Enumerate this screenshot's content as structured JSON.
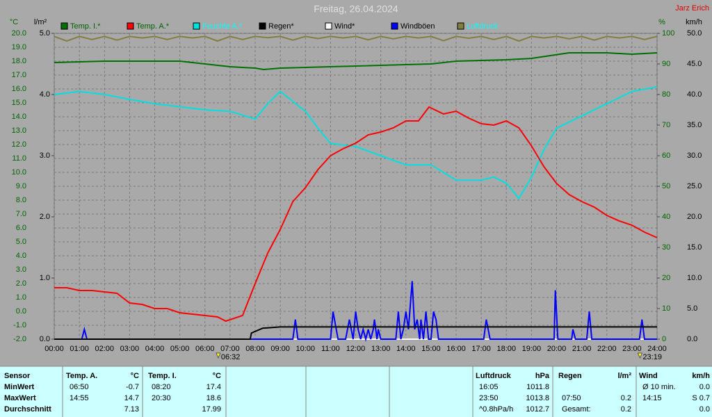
{
  "chart_data": {
    "type": "line",
    "title": "Freitag, 26.04.2024",
    "author": "Jarz Erich",
    "xlim": [
      0,
      24
    ],
    "xticks": [
      {
        "value": 0,
        "label": "00:00"
      },
      {
        "value": 1,
        "label": "01:00"
      },
      {
        "value": 2,
        "label": "02:00"
      },
      {
        "value": 3,
        "label": "03:00"
      },
      {
        "value": 4,
        "label": "04:00"
      },
      {
        "value": 5,
        "label": "05:00"
      },
      {
        "value": 6,
        "label": "06:00"
      },
      {
        "value": 7,
        "label": "07:00"
      },
      {
        "value": 8,
        "label": "08:00"
      },
      {
        "value": 9,
        "label": "09:00"
      },
      {
        "value": 10,
        "label": "10:00"
      },
      {
        "value": 11,
        "label": "11:00"
      },
      {
        "value": 12,
        "label": "12:00"
      },
      {
        "value": 13,
        "label": "13:00"
      },
      {
        "value": 14,
        "label": "14:00"
      },
      {
        "value": 15,
        "label": "15:00"
      },
      {
        "value": 16,
        "label": "16:00"
      },
      {
        "value": 17,
        "label": "17:00"
      },
      {
        "value": 18,
        "label": "18:00"
      },
      {
        "value": 19,
        "label": "19:00"
      },
      {
        "value": 20,
        "label": "20:00"
      },
      {
        "value": 21,
        "label": "21:00"
      },
      {
        "value": 22,
        "label": "22:00"
      },
      {
        "value": 23,
        "label": "23:00"
      },
      {
        "value": 24,
        "label": "24:00"
      }
    ],
    "y_label": "°C",
    "ylim": [
      -2,
      20
    ],
    "yticks": [
      {
        "value": -2,
        "label": "-2.0"
      },
      {
        "value": -1,
        "label": "-1.0"
      },
      {
        "value": 0,
        "label": "0.0"
      },
      {
        "value": 1,
        "label": "1.0"
      },
      {
        "value": 2,
        "label": "2.0"
      },
      {
        "value": 3,
        "label": "3.0"
      },
      {
        "value": 4,
        "label": "4.0"
      },
      {
        "value": 5,
        "label": "5.0"
      },
      {
        "value": 6,
        "label": "6.0"
      },
      {
        "value": 7,
        "label": "7.0"
      },
      {
        "value": 8,
        "label": "8.0"
      },
      {
        "value": 9,
        "label": "9.0"
      },
      {
        "value": 10,
        "label": "10.0"
      },
      {
        "value": 11,
        "label": "11.0"
      },
      {
        "value": 12,
        "label": "12.0"
      },
      {
        "value": 13,
        "label": "13.0"
      },
      {
        "value": 14,
        "label": "14.0"
      },
      {
        "value": 15,
        "label": "15.0"
      },
      {
        "value": 16,
        "label": "16.0"
      },
      {
        "value": 17,
        "label": "17.0"
      },
      {
        "value": 18,
        "label": "18.0"
      },
      {
        "value": 19,
        "label": "19.0"
      },
      {
        "value": 20,
        "label": "20.0"
      }
    ],
    "y3_label": "l/m²",
    "y3lim": [
      0,
      5
    ],
    "y3ticks": [
      {
        "value": 0,
        "label": "0.0"
      },
      {
        "value": 1,
        "label": "1.0"
      },
      {
        "value": 2,
        "label": "2.0"
      },
      {
        "value": 3,
        "label": "3.0"
      },
      {
        "value": 4,
        "label": "4.0"
      },
      {
        "value": 5,
        "label": "5.0"
      }
    ],
    "y2_label": "%",
    "y2lim": [
      0,
      100
    ],
    "y2ticks": [
      0,
      10,
      20,
      30,
      40,
      50,
      60,
      70,
      80,
      90,
      100
    ],
    "y4_label": "km/h",
    "y4lim": [
      0,
      50
    ],
    "y4ticks": [
      {
        "value": 0,
        "label": "0.0"
      },
      {
        "value": 5,
        "label": "5.0"
      },
      {
        "value": 10,
        "label": "10.0"
      },
      {
        "value": 15,
        "label": "15.0"
      },
      {
        "value": 20,
        "label": "20.0"
      },
      {
        "value": 25,
        "label": "25.0"
      },
      {
        "value": 30,
        "label": "30.0"
      },
      {
        "value": 35,
        "label": "35.0"
      },
      {
        "value": 40,
        "label": "40.0"
      },
      {
        "value": 45,
        "label": "45.0"
      },
      {
        "value": 50,
        "label": "50.0"
      }
    ],
    "grid": true,
    "series": [
      {
        "name": "Temp. I.*",
        "color": "#007000",
        "axis": "y",
        "x": [
          0,
          2,
          4,
          5,
          6,
          7,
          8,
          8.33,
          9,
          11,
          13,
          15,
          16,
          18,
          19,
          20.5,
          22,
          23,
          24
        ],
        "values": [
          17.9,
          18.0,
          18.0,
          18.0,
          17.8,
          17.6,
          17.5,
          17.4,
          17.5,
          17.6,
          17.7,
          17.8,
          18.0,
          18.1,
          18.2,
          18.6,
          18.6,
          18.5,
          18.6
        ]
      },
      {
        "name": "Temp. A.*",
        "color": "#ff0000",
        "axis": "y",
        "x": [
          0,
          0.5,
          1,
          1.5,
          2,
          2.5,
          3,
          3.5,
          4,
          4.5,
          5,
          5.5,
          6,
          6.5,
          6.83,
          7.5,
          8,
          8.5,
          9,
          9.5,
          10,
          10.5,
          11,
          11.5,
          12,
          12.5,
          13,
          13.5,
          14,
          14.5,
          14.92,
          15.5,
          16,
          16.5,
          17,
          17.5,
          18,
          18.5,
          19,
          19.5,
          20,
          20.5,
          21,
          21.5,
          22,
          22.5,
          23,
          23.5,
          24
        ],
        "values": [
          1.7,
          1.7,
          1.5,
          1.5,
          1.4,
          1.3,
          0.6,
          0.5,
          0.2,
          0.2,
          -0.1,
          -0.2,
          -0.3,
          -0.4,
          -0.7,
          -0.3,
          2.0,
          4.2,
          5.9,
          7.9,
          8.9,
          10.2,
          11.2,
          11.7,
          12.1,
          12.7,
          12.9,
          13.2,
          13.7,
          13.7,
          14.7,
          14.2,
          14.4,
          13.9,
          13.5,
          13.4,
          13.7,
          13.2,
          11.9,
          10.4,
          9.2,
          8.4,
          7.9,
          7.5,
          6.9,
          6.5,
          6.2,
          5.7,
          5.3
        ]
      },
      {
        "name": "Feuchte A.*",
        "color": "#00e0e0",
        "axis": "y2",
        "x": [
          0,
          1,
          2,
          3,
          4,
          5,
          6,
          7,
          8,
          8.5,
          9,
          10,
          10.5,
          11,
          12,
          13,
          14,
          15,
          16,
          17,
          17.5,
          18,
          18.5,
          19,
          19.5,
          20,
          21,
          22,
          23,
          24
        ],
        "values": [
          80,
          81,
          80,
          78.4,
          77,
          76,
          75,
          74.5,
          72,
          77,
          81,
          74.5,
          69,
          64,
          63,
          60,
          57,
          57,
          52,
          52,
          53,
          51,
          46,
          53,
          62,
          69,
          73,
          77,
          81,
          82.5
        ]
      },
      {
        "name": "Regen*",
        "color": "#000000",
        "axis": "y3",
        "x": [
          0,
          7.8,
          7.85,
          8.3,
          9,
          24
        ],
        "values": [
          0,
          0,
          0.1,
          0.18,
          0.2,
          0.2
        ]
      },
      {
        "name": "Wind*",
        "color": "#ffffff",
        "axis": "y4",
        "x": [
          0,
          24
        ],
        "values": [
          0,
          0
        ]
      },
      {
        "name": "Windböen",
        "color": "#0000ff",
        "axis": "y4",
        "x": [
          0,
          1.1,
          1.2,
          1.3,
          9.5,
          9.6,
          9.7,
          11,
          11.1,
          11.3,
          11.6,
          11.75,
          11.9,
          12,
          12.1,
          12.2,
          12.3,
          12.4,
          12.5,
          12.6,
          12.7,
          12.75,
          12.85,
          12.9,
          13,
          13.6,
          13.7,
          13.8,
          13.9,
          14,
          14.1,
          14.25,
          14.35,
          14.45,
          14.55,
          14.6,
          14.7,
          14.8,
          14.9,
          15,
          15.1,
          15.2,
          15.3,
          17.1,
          17.2,
          17.35,
          19.9,
          19.95,
          20.05,
          20.6,
          20.65,
          20.75,
          21.2,
          21.3,
          21.4,
          23.3,
          23.4,
          23.5,
          24
        ],
        "values": [
          0,
          0,
          1.6,
          0,
          0,
          3.2,
          0,
          0,
          4.5,
          0,
          0,
          3.2,
          0,
          4.5,
          1.6,
          0,
          1.6,
          0,
          1.6,
          0,
          1.6,
          3.2,
          0,
          1.6,
          0,
          0,
          4.5,
          0,
          1.6,
          4.5,
          1.6,
          9.5,
          1.6,
          3.2,
          0,
          3.2,
          0,
          4.5,
          0,
          0,
          4.5,
          3.2,
          0,
          0,
          3.2,
          0,
          0,
          8.0,
          0,
          0,
          1.6,
          0,
          0,
          4.5,
          0,
          0,
          3.2,
          0,
          0
        ]
      },
      {
        "name": "Luftdruck",
        "color": "#808040",
        "axis": "y2",
        "x": [
          0,
          0.5,
          1,
          1.5,
          2,
          2.5,
          3,
          3.5,
          4,
          4.5,
          5,
          5.5,
          6,
          6.5,
          7,
          7.5,
          8,
          8.5,
          9,
          9.5,
          10,
          10.5,
          11,
          11.5,
          12,
          12.5,
          13,
          13.5,
          14,
          14.5,
          15,
          15.5,
          16,
          16.5,
          17,
          17.5,
          18,
          18.5,
          19,
          19.5,
          20,
          20.5,
          21,
          21.5,
          22,
          22.5,
          23,
          23.5,
          24
        ],
        "values": [
          99,
          97.5,
          99,
          98,
          99,
          97.8,
          99,
          98.5,
          99,
          98,
          99,
          98.5,
          99,
          97.5,
          99,
          98,
          99,
          98.6,
          99,
          97.8,
          99,
          98.3,
          99,
          98.5,
          99,
          97.9,
          99,
          98.2,
          99,
          98.5,
          99,
          97.6,
          99,
          98.4,
          99,
          98,
          99,
          97.5,
          99,
          98.5,
          99,
          98.2,
          99,
          97.8,
          99,
          98.5,
          99,
          98,
          99
        ]
      }
    ],
    "markers": [
      {
        "x": 6.53,
        "label": "06:32"
      },
      {
        "x": 23.32,
        "label": "23:19"
      }
    ]
  },
  "table": {
    "row_labels": [
      "Sensor",
      "MinWert",
      "MaxWert",
      "Durchschnitt"
    ],
    "blocks": [
      {
        "header": "Temp. A.",
        "unit": "°C",
        "rows": [
          [
            "06:50",
            "-0.7"
          ],
          [
            "14:55",
            "14.7"
          ],
          [
            null,
            "7.13"
          ]
        ]
      },
      {
        "header": "Temp. I.",
        "unit": "°C",
        "rows": [
          [
            "08:20",
            "17.4"
          ],
          [
            "20:30",
            "18.6"
          ],
          [
            null,
            "17.99"
          ]
        ]
      },
      {
        "header": "Luftdruck",
        "unit": "hPa",
        "rows": [
          [
            "16:05",
            "1011.8"
          ],
          [
            "23:50",
            "1013.8"
          ],
          [
            "^0.8hPa/h",
            "1012.7"
          ]
        ]
      },
      {
        "header": "Regen",
        "unit": "l/m²",
        "rows": [
          [
            null,
            null
          ],
          [
            "07:50",
            "0.2"
          ],
          [
            "Gesamt:",
            "0.2"
          ]
        ]
      },
      {
        "header": "Wind",
        "unit": "km/h",
        "rows": [
          [
            "Ø 10 min.",
            "0.0"
          ],
          [
            "14:15",
            "S 0.7"
          ],
          [
            null,
            "0.0"
          ]
        ]
      }
    ]
  }
}
